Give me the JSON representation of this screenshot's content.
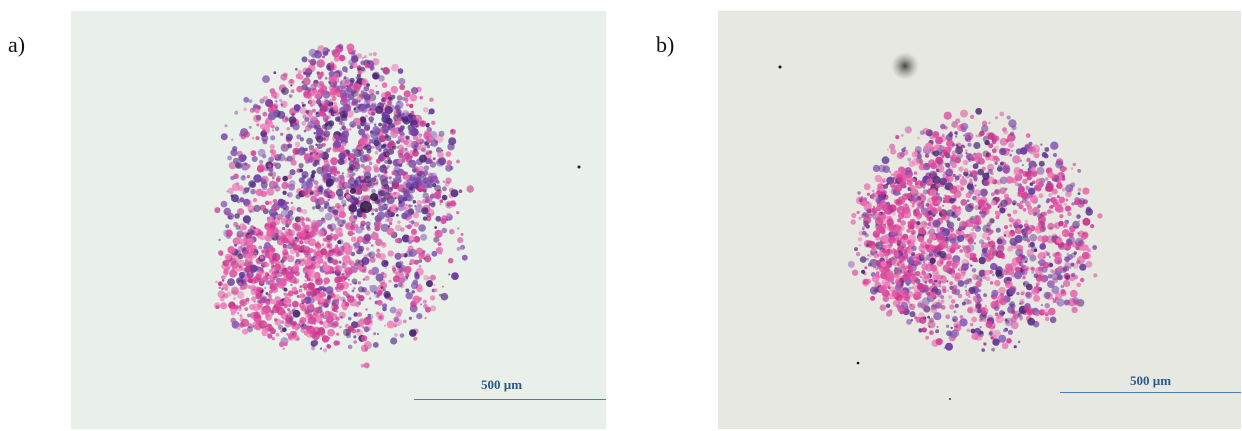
{
  "panels": [
    {
      "label": "a)",
      "scale_bar": "500 µm"
    },
    {
      "label": "b)",
      "scale_bar": "500 µm"
    }
  ],
  "colors": {
    "background_a": "#e9efe9",
    "background_b": "#e8e8e2",
    "eosin_pink": "#d9409a",
    "hematoxylin_purple": "#6a3aa0",
    "scale_bar_blue": "#4a7fb5"
  }
}
